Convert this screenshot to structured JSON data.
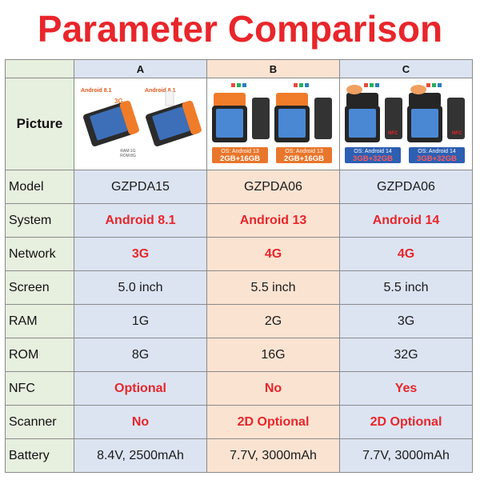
{
  "title": "Parameter Comparison",
  "columns": [
    "A",
    "B",
    "C"
  ],
  "picture_label": "Picture",
  "pictures": {
    "A": {
      "left_os": "Android 8.1",
      "right_os": "Android 8.1",
      "network": "3G",
      "ram_rom": "RAM:1G ROM:8G"
    },
    "B": {
      "badge_os": "OS: Android 13",
      "badge_mem": "2GB+16GB"
    },
    "C": {
      "badge_os": "OS: Android 14",
      "badge_mem": "3GB+32GB",
      "nfc": "NFC"
    }
  },
  "rows": [
    {
      "label": "Model",
      "values": [
        "GZPDA15",
        "GZPDA06",
        "GZPDA06"
      ],
      "highlight": false
    },
    {
      "label": "System",
      "values": [
        "Android 8.1",
        "Android 13",
        "Android 14"
      ],
      "highlight": true
    },
    {
      "label": "Network",
      "values": [
        "3G",
        "4G",
        "4G"
      ],
      "highlight": true
    },
    {
      "label": "Screen",
      "values": [
        "5.0 inch",
        "5.5 inch",
        "5.5 inch"
      ],
      "highlight": false
    },
    {
      "label": "RAM",
      "values": [
        "1G",
        "2G",
        "3G"
      ],
      "highlight": false
    },
    {
      "label": "ROM",
      "values": [
        "8G",
        "16G",
        "32G"
      ],
      "highlight": false
    },
    {
      "label": "NFC",
      "values": [
        "Optional",
        "No",
        "Yes"
      ],
      "highlight": true
    },
    {
      "label": "Scanner",
      "values": [
        "No",
        "2D Optional",
        "2D Optional"
      ],
      "highlight": true
    },
    {
      "label": "Battery",
      "values": [
        "8.4V, 2500mAh",
        "7.7V, 3000mAh",
        "7.7V, 3000mAh"
      ],
      "highlight": false
    }
  ],
  "colors": {
    "title_red": "#e8262b",
    "label_bg": "#e7efdf",
    "col_blue_bg": "#dce4f2",
    "col_peach_bg": "#fbe3d2",
    "badge_orange": "#e8762b",
    "badge_blue": "#2d5fb3"
  }
}
